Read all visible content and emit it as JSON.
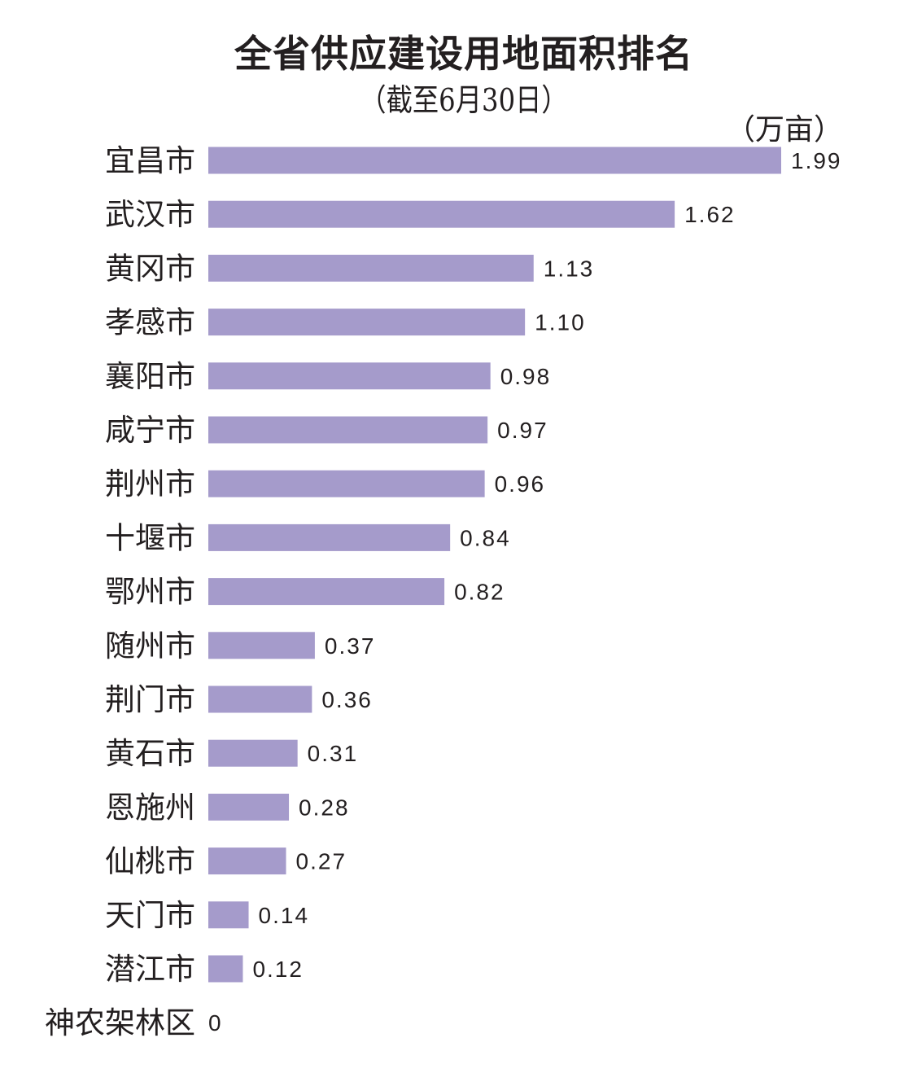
{
  "chart_data": {
    "type": "bar",
    "orientation": "horizontal",
    "title": "全省供应建设用地面积排名",
    "subtitle": "（截至6月30日）",
    "unit": "（万亩）",
    "categories": [
      "宜昌市",
      "武汉市",
      "黄冈市",
      "孝感市",
      "襄阳市",
      "咸宁市",
      "荆州市",
      "十堰市",
      "鄂州市",
      "随州市",
      "荆门市",
      "黄石市",
      "恩施州",
      "仙桃市",
      "天门市",
      "潜江市",
      "神农架林区"
    ],
    "values": [
      1.99,
      1.62,
      1.13,
      1.1,
      0.98,
      0.97,
      0.96,
      0.84,
      0.82,
      0.37,
      0.36,
      0.31,
      0.28,
      0.27,
      0.14,
      0.12,
      0
    ],
    "value_labels": [
      "1.99",
      "1.62",
      "1.13",
      "1.10",
      "0.98",
      "0.97",
      "0.96",
      "0.84",
      "0.82",
      "0.37",
      "0.36",
      "0.31",
      "0.28",
      "0.27",
      "0.14",
      "0.12",
      "0"
    ],
    "bar_color": "#a59bcb",
    "grid": false,
    "legend": "none"
  }
}
